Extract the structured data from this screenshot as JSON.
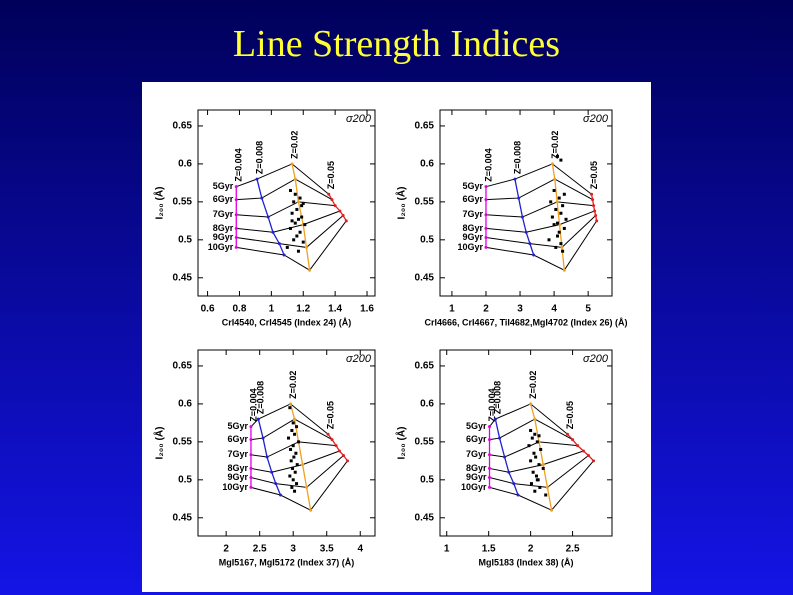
{
  "title": "Line Strength Indices",
  "chart_data": [
    {
      "type": "line",
      "label": "σ200",
      "xlabel": "CrI4540, CrI4545 (Index 24) (Å)",
      "ylabel": "I₂₀₀ (Å)",
      "xlim": [
        0.54,
        1.65
      ],
      "ylim": [
        0.426,
        0.671
      ],
      "xticks": [
        0.6,
        0.8,
        1,
        1.2,
        1.4,
        1.6
      ],
      "yticks": [
        0.45,
        0.5,
        0.55,
        0.6,
        0.65
      ],
      "age_line_color": "#000000",
      "z_lines": [
        {
          "name": "Z=0.004",
          "color": "#e000e0"
        },
        {
          "name": "Z=0.008",
          "color": "#2020d0"
        },
        {
          "name": "Z=0.02",
          "color": "#f0a020"
        },
        {
          "name": "Z=0.05",
          "color": "#e02020"
        }
      ],
      "series": [
        {
          "name": "5Gyr",
          "x": [
            0.78,
            0.91,
            1.13,
            1.36
          ],
          "values": [
            0.57,
            0.58,
            0.6,
            0.56
          ]
        },
        {
          "name": "6Gyr",
          "x": [
            0.78,
            0.94,
            1.15,
            1.38
          ],
          "values": [
            0.553,
            0.555,
            0.58,
            0.553
          ]
        },
        {
          "name": "7Gyr",
          "x": [
            0.78,
            0.98,
            1.17,
            1.4
          ],
          "values": [
            0.533,
            0.53,
            0.55,
            0.545
          ]
        },
        {
          "name": "8Gyr",
          "x": [
            0.78,
            1.01,
            1.2,
            1.43
          ],
          "values": [
            0.515,
            0.51,
            0.52,
            0.538
          ]
        },
        {
          "name": "9Gyr",
          "x": [
            0.78,
            1.05,
            1.22,
            1.45
          ],
          "values": [
            0.503,
            0.495,
            0.49,
            0.532
          ]
        },
        {
          "name": "10Gyr",
          "x": [
            0.78,
            1.08,
            1.24,
            1.47
          ],
          "values": [
            0.49,
            0.48,
            0.46,
            0.525
          ]
        }
      ],
      "points": {
        "color": "#000000",
        "x": [
          1.12,
          1.15,
          1.18,
          1.14,
          1.2,
          1.16,
          1.13,
          1.19,
          1.17,
          1.15,
          1.21,
          1.12,
          1.18,
          1.16,
          1.14,
          1.2,
          1.1,
          1.17,
          1.19,
          1.13
        ],
        "values": [
          0.565,
          0.56,
          0.555,
          0.55,
          0.548,
          0.54,
          0.535,
          0.53,
          0.527,
          0.522,
          0.52,
          0.515,
          0.51,
          0.505,
          0.5,
          0.497,
          0.49,
          0.485,
          0.545,
          0.525
        ]
      }
    },
    {
      "type": "line",
      "label": "σ200",
      "xlabel": "CrI4666, CrI4667, TiI4682,MgI4702 (Index 26) (Å)",
      "ylabel": "I₂₀₀ (Å)",
      "xlim": [
        0.65,
        5.7
      ],
      "ylim": [
        0.426,
        0.671
      ],
      "xticks": [
        1,
        2,
        3,
        4,
        5
      ],
      "yticks": [
        0.45,
        0.5,
        0.55,
        0.6,
        0.65
      ],
      "age_line_color": "#000000",
      "z_lines": [
        {
          "name": "Z=0.004",
          "color": "#e000e0"
        },
        {
          "name": "Z=0.008",
          "color": "#2020d0"
        },
        {
          "name": "Z=0.02",
          "color": "#f0a020"
        },
        {
          "name": "Z=0.05",
          "color": "#e02020"
        }
      ],
      "series": [
        {
          "name": "5Gyr",
          "x": [
            2.0,
            2.85,
            3.95,
            5.1
          ],
          "values": [
            0.57,
            0.58,
            0.6,
            0.56
          ]
        },
        {
          "name": "6Gyr",
          "x": [
            2.0,
            2.96,
            4.02,
            5.13
          ],
          "values": [
            0.553,
            0.555,
            0.58,
            0.553
          ]
        },
        {
          "name": "7Gyr",
          "x": [
            2.0,
            3.07,
            4.09,
            5.16
          ],
          "values": [
            0.533,
            0.53,
            0.55,
            0.545
          ]
        },
        {
          "name": "8Gyr",
          "x": [
            2.0,
            3.18,
            4.16,
            5.19
          ],
          "values": [
            0.515,
            0.51,
            0.52,
            0.538
          ]
        },
        {
          "name": "9Gyr",
          "x": [
            2.0,
            3.29,
            4.23,
            5.22
          ],
          "values": [
            0.503,
            0.495,
            0.49,
            0.532
          ]
        },
        {
          "name": "10Gyr",
          "x": [
            2.0,
            3.4,
            4.3,
            5.25
          ],
          "values": [
            0.49,
            0.48,
            0.46,
            0.525
          ]
        }
      ],
      "points": {
        "color": "#000000",
        "x": [
          4.1,
          4.2,
          4.0,
          4.3,
          4.15,
          3.9,
          4.25,
          4.05,
          4.2,
          3.95,
          4.35,
          4.1,
          4.0,
          4.3,
          4.15,
          4.1,
          3.85,
          4.2,
          4.05,
          4.25
        ],
        "values": [
          0.61,
          0.605,
          0.565,
          0.56,
          0.555,
          0.55,
          0.545,
          0.54,
          0.535,
          0.53,
          0.527,
          0.522,
          0.52,
          0.515,
          0.51,
          0.505,
          0.5,
          0.495,
          0.49,
          0.485
        ]
      }
    },
    {
      "type": "line",
      "label": "σ200",
      "xlabel": "MgI5167, MgI5172 (Index 37) (Å)",
      "ylabel": "I₂₀₀ (Å)",
      "xlim": [
        1.58,
        4.22
      ],
      "ylim": [
        0.426,
        0.671
      ],
      "xticks": [
        2,
        2.5,
        3,
        3.5,
        4
      ],
      "yticks": [
        0.45,
        0.5,
        0.55,
        0.6,
        0.65
      ],
      "age_line_color": "#000000",
      "z_lines": [
        {
          "name": "Z=0.004",
          "color": "#e000e0"
        },
        {
          "name": "Z=0.008",
          "color": "#2020d0"
        },
        {
          "name": "Z=0.02",
          "color": "#f0a020"
        },
        {
          "name": "Z=0.05",
          "color": "#e02020"
        }
      ],
      "series": [
        {
          "name": "5Gyr",
          "x": [
            2.37,
            2.48,
            2.96,
            3.52
          ],
          "values": [
            0.57,
            0.58,
            0.6,
            0.56
          ]
        },
        {
          "name": "6Gyr",
          "x": [
            2.37,
            2.55,
            3.02,
            3.58
          ],
          "values": [
            0.553,
            0.555,
            0.58,
            0.553
          ]
        },
        {
          "name": "7Gyr",
          "x": [
            2.37,
            2.61,
            3.08,
            3.64
          ],
          "values": [
            0.533,
            0.53,
            0.55,
            0.545
          ]
        },
        {
          "name": "8Gyr",
          "x": [
            2.37,
            2.68,
            3.14,
            3.69
          ],
          "values": [
            0.515,
            0.51,
            0.52,
            0.538
          ]
        },
        {
          "name": "9Gyr",
          "x": [
            2.37,
            2.74,
            3.2,
            3.75
          ],
          "values": [
            0.503,
            0.495,
            0.49,
            0.532
          ]
        },
        {
          "name": "10Gyr",
          "x": [
            2.37,
            2.81,
            3.26,
            3.81
          ],
          "values": [
            0.49,
            0.48,
            0.46,
            0.525
          ]
        }
      ],
      "points": {
        "color": "#000000",
        "x": [
          2.95,
          3.0,
          3.05,
          2.98,
          3.02,
          2.93,
          3.08,
          3.0,
          2.96,
          3.04,
          3.01,
          2.97,
          3.06,
          2.99,
          3.03,
          2.95,
          3.0,
          3.05,
          2.98,
          3.02
        ],
        "values": [
          0.595,
          0.575,
          0.57,
          0.565,
          0.56,
          0.555,
          0.55,
          0.545,
          0.54,
          0.535,
          0.53,
          0.525,
          0.52,
          0.515,
          0.51,
          0.505,
          0.5,
          0.495,
          0.49,
          0.485
        ]
      }
    },
    {
      "type": "line",
      "label": "σ200",
      "xlabel": "MgI5183 (Index 38) (Å)",
      "ylabel": "I₂₀₀ (Å)",
      "xlim": [
        0.92,
        2.97
      ],
      "ylim": [
        0.426,
        0.671
      ],
      "xticks": [
        1,
        1.5,
        2,
        2.5
      ],
      "yticks": [
        0.45,
        0.5,
        0.55,
        0.6,
        0.65
      ],
      "age_line_color": "#000000",
      "z_lines": [
        {
          "name": "Z=0.004",
          "color": "#e000e0"
        },
        {
          "name": "Z=0.008",
          "color": "#2020d0"
        },
        {
          "name": "Z=0.02",
          "color": "#f0a020"
        },
        {
          "name": "Z=0.05",
          "color": "#e02020"
        }
      ],
      "series": [
        {
          "name": "5Gyr",
          "x": [
            1.51,
            1.58,
            2.0,
            2.44
          ],
          "values": [
            0.57,
            0.58,
            0.6,
            0.56
          ]
        },
        {
          "name": "6Gyr",
          "x": [
            1.51,
            1.63,
            2.05,
            2.5
          ],
          "values": [
            0.553,
            0.555,
            0.58,
            0.553
          ]
        },
        {
          "name": "7Gyr",
          "x": [
            1.51,
            1.69,
            2.1,
            2.56
          ],
          "values": [
            0.533,
            0.53,
            0.55,
            0.545
          ]
        },
        {
          "name": "8Gyr",
          "x": [
            1.51,
            1.74,
            2.15,
            2.63
          ],
          "values": [
            0.515,
            0.51,
            0.52,
            0.538
          ]
        },
        {
          "name": "9Gyr",
          "x": [
            1.51,
            1.8,
            2.2,
            2.69
          ],
          "values": [
            0.503,
            0.495,
            0.49,
            0.532
          ]
        },
        {
          "name": "10Gyr",
          "x": [
            1.51,
            1.85,
            2.25,
            2.75
          ],
          "values": [
            0.49,
            0.48,
            0.46,
            0.525
          ]
        }
      ],
      "points": {
        "color": "#000000",
        "x": [
          2.0,
          2.05,
          2.1,
          2.02,
          2.08,
          1.98,
          2.12,
          2.04,
          2.06,
          2.0,
          2.1,
          2.15,
          2.03,
          2.07,
          2.09,
          2.01,
          2.11,
          2.05,
          2.18,
          2.08
        ],
        "values": [
          0.565,
          0.56,
          0.558,
          0.555,
          0.55,
          0.545,
          0.54,
          0.535,
          0.53,
          0.525,
          0.52,
          0.515,
          0.51,
          0.505,
          0.5,
          0.495,
          0.49,
          0.485,
          0.48,
          0.5
        ]
      }
    }
  ]
}
